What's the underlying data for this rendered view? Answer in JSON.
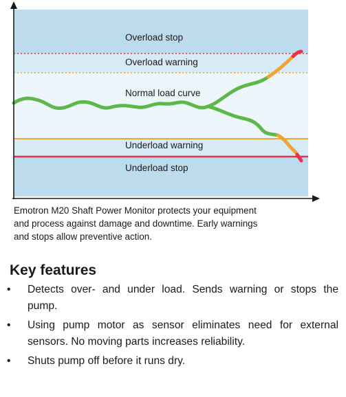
{
  "diagram": {
    "zones": {
      "overload_stop": "Overload stop",
      "overload_warning": "Overload warning",
      "normal_load_curve": "Normal load curve",
      "underload_warning": "Underload warning",
      "underload_stop": "Underload stop"
    },
    "colors": {
      "outer_band": "#bcdcee",
      "middle_band": "#d7ebf6",
      "inner_band": "#edf6fb",
      "stop_line": "#e8334a",
      "warning_line": "#f0a436",
      "curve_normal": "#5db749",
      "curve_warning": "#f0a436",
      "curve_stop": "#e8334a"
    }
  },
  "caption": [
    "Emotron M20 Shaft Power Monitor protects your equipment",
    "and process against damage and downtime. Early warnings",
    "and stops allow preventive action."
  ],
  "features": {
    "title": "Key features",
    "bullet": "•",
    "items": [
      [
        "Detects over- and under load. Sends warning or stops the",
        "pump."
      ],
      [
        "Using pump motor as sensor eliminates need for external",
        "sensors. No moving parts increases reliability."
      ],
      [
        "Shuts pump off before it runs dry."
      ]
    ]
  }
}
